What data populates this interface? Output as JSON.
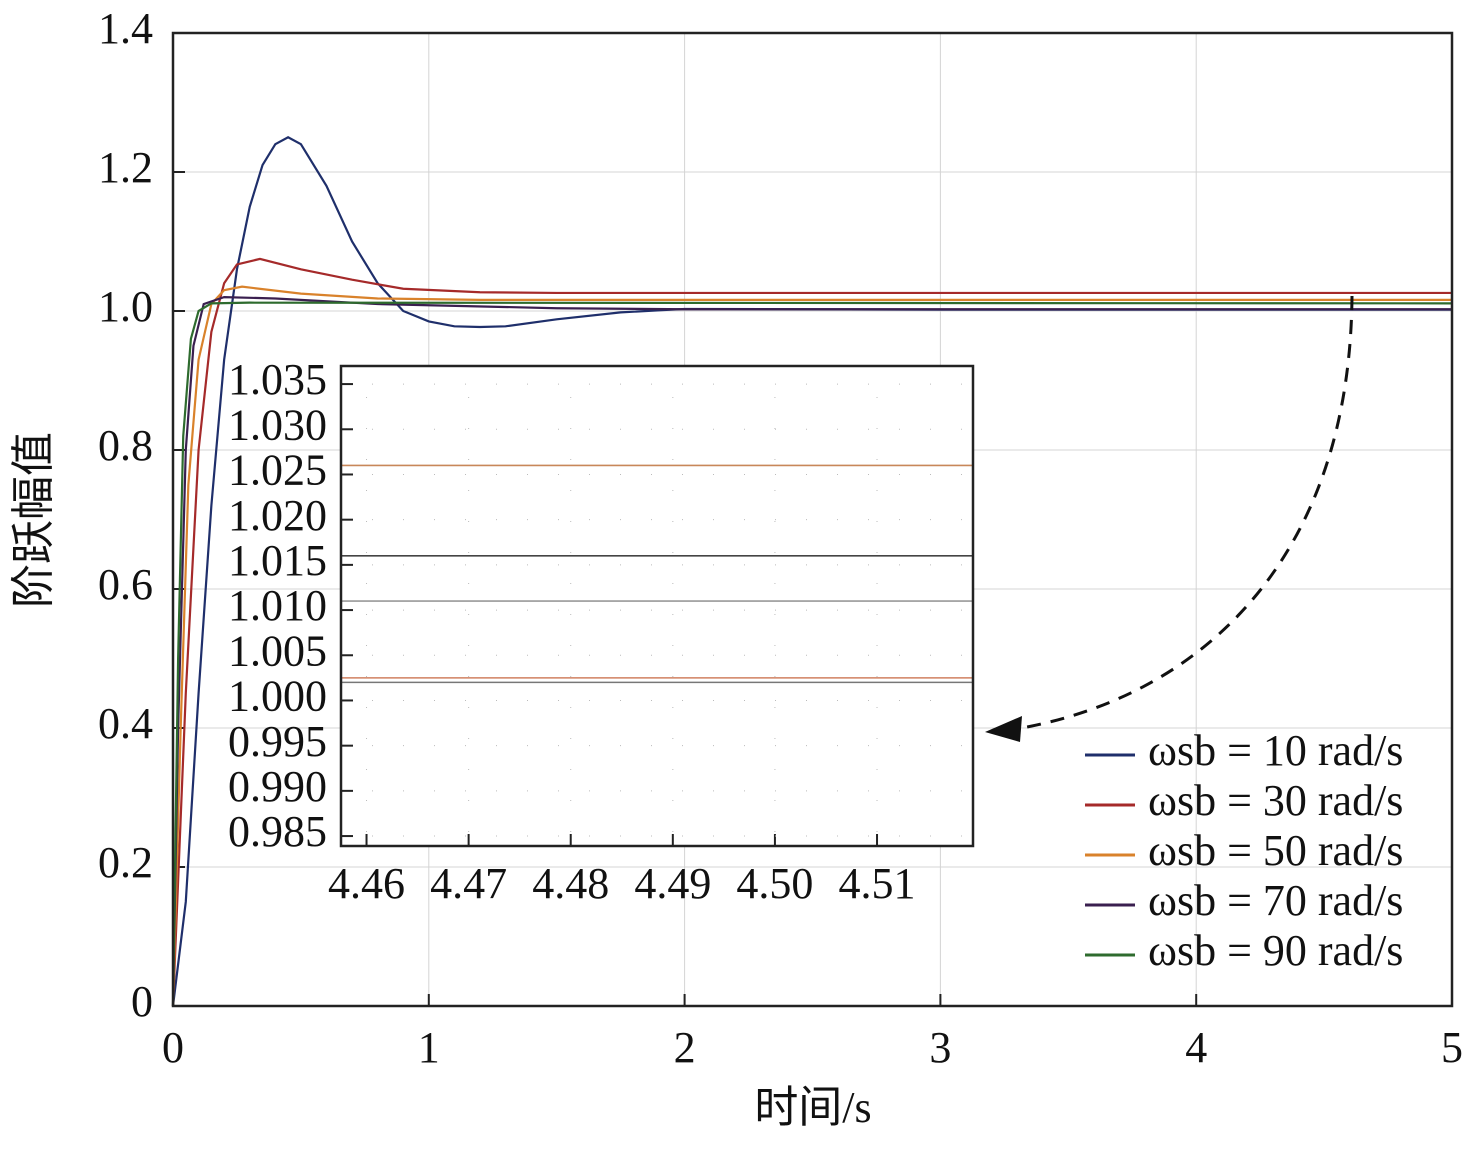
{
  "chart_data": [
    {
      "type": "line",
      "x_label": "时间/s",
      "y_label": "阶跃幅值",
      "xlim": [
        0,
        5
      ],
      "xticks": [
        0,
        1,
        2,
        3,
        4,
        5
      ],
      "ylim": [
        0,
        1.4
      ],
      "yticks": [
        0,
        0.2,
        0.4,
        0.6,
        0.8,
        {
          "value": 1,
          "label": "1.0"
        },
        1.2,
        1.4
      ],
      "grid": true,
      "legend": "lower right",
      "series": [
        {
          "name": "ωsb = 10 rad/s",
          "color": "#1f2f6b",
          "x": [
            0,
            0.05,
            0.1,
            0.15,
            0.2,
            0.25,
            0.3,
            0.35,
            0.4,
            0.45,
            0.5,
            0.6,
            0.7,
            0.8,
            0.9,
            1.0,
            1.1,
            1.2,
            1.3,
            1.5,
            1.75,
            2.0,
            3.0,
            5.0
          ],
          "values": [
            0,
            0.15,
            0.45,
            0.72,
            0.93,
            1.06,
            1.15,
            1.21,
            1.24,
            1.25,
            1.24,
            1.18,
            1.1,
            1.04,
            1.0,
            0.985,
            0.978,
            0.977,
            0.978,
            0.988,
            0.998,
            1.003,
            1.002,
            1.002
          ]
        },
        {
          "name": "ωsb = 30 rad/s",
          "color": "#a52a2a",
          "x": [
            0,
            0.05,
            0.1,
            0.15,
            0.2,
            0.25,
            0.34,
            0.5,
            0.7,
            0.9,
            1.2,
            1.5,
            5.0
          ],
          "values": [
            0,
            0.45,
            0.8,
            0.97,
            1.04,
            1.067,
            1.075,
            1.06,
            1.045,
            1.032,
            1.027,
            1.026,
            1.026
          ]
        },
        {
          "name": "ωsb = 50 rad/s",
          "color": "#d9822b",
          "x": [
            0,
            0.03,
            0.06,
            0.1,
            0.15,
            0.2,
            0.27,
            0.5,
            0.8,
            1.2,
            5.0
          ],
          "values": [
            0,
            0.4,
            0.75,
            0.93,
            1.01,
            1.03,
            1.035,
            1.025,
            1.018,
            1.016,
            1.016
          ]
        },
        {
          "name": "ωsb = 70 rad/s",
          "color": "#3a1f4f",
          "x": [
            0,
            0.02,
            0.05,
            0.08,
            0.12,
            0.2,
            0.4,
            0.8,
            1.5,
            2.0,
            5.0
          ],
          "values": [
            0,
            0.4,
            0.8,
            0.95,
            1.01,
            1.02,
            1.018,
            1.01,
            1.004,
            1.0025,
            1.0025
          ]
        },
        {
          "name": "ωsb = 90 rad/s",
          "color": "#2e6b2e",
          "x": [
            0,
            0.02,
            0.04,
            0.07,
            0.1,
            0.15,
            0.3,
            5.0
          ],
          "values": [
            0,
            0.5,
            0.82,
            0.96,
            1.0,
            1.011,
            1.012,
            1.011
          ]
        }
      ]
    },
    {
      "type": "line",
      "xlim": [
        4.4575,
        4.5194
      ],
      "xticks": [
        4.46,
        4.47,
        4.48,
        4.49,
        {
          "value": 4.5,
          "label": "4.50"
        },
        4.51
      ],
      "ylim": [
        0.9839,
        1.037
      ],
      "yticks": [
        0.985,
        {
          "value": 0.99,
          "label": "0.990"
        },
        0.995,
        {
          "value": 1,
          "label": "1.000"
        },
        1.005,
        {
          "value": 1.01,
          "label": "1.010"
        },
        1.015,
        {
          "value": 1.02,
          "label": "1.020"
        },
        1.025,
        {
          "value": 1.03,
          "label": "1.030"
        },
        1.035
      ],
      "grid": true,
      "x": [
        4.4575,
        4.5194
      ],
      "series": [
        {
          "color": "#c8875a",
          "values": [
            1.026,
            1.026
          ]
        },
        {
          "color": "#444444",
          "values": [
            1.016,
            1.016
          ]
        },
        {
          "color": "#999999",
          "values": [
            1.011,
            1.011
          ]
        },
        {
          "color": "#d08060",
          "values": [
            1.0025,
            1.0025
          ]
        },
        {
          "color": "#777777",
          "values": [
            1.002,
            1.002
          ]
        }
      ]
    }
  ]
}
